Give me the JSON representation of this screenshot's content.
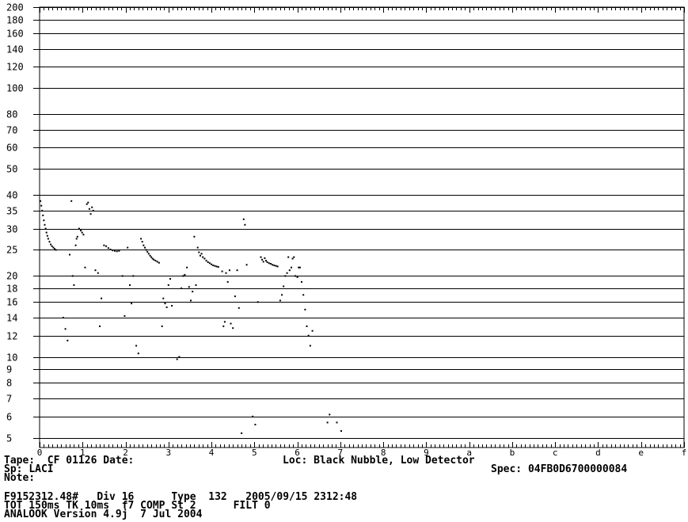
{
  "chart_data": {
    "type": "scatter",
    "title": "",
    "xlabel": "",
    "ylabel": "",
    "x_scale": "linear",
    "y_scale": "log",
    "xlim": [
      0,
      15
    ],
    "ylim": [
      4.6,
      200
    ],
    "grid": true,
    "x_ticks": [
      {
        "v": 0,
        "label": "0"
      },
      {
        "v": 1,
        "label": "1"
      },
      {
        "v": 2,
        "label": "2"
      },
      {
        "v": 3,
        "label": "3"
      },
      {
        "v": 4,
        "label": "4"
      },
      {
        "v": 5,
        "label": "5"
      },
      {
        "v": 6,
        "label": "6"
      },
      {
        "v": 7,
        "label": "7"
      },
      {
        "v": 8,
        "label": "8"
      },
      {
        "v": 9,
        "label": "9"
      },
      {
        "v": 10,
        "label": "a"
      },
      {
        "v": 11,
        "label": "b"
      },
      {
        "v": 12,
        "label": "c"
      },
      {
        "v": 13,
        "label": "d"
      },
      {
        "v": 14,
        "label": "e"
      },
      {
        "v": 15,
        "label": "f"
      }
    ],
    "y_ticks": [
      {
        "v": 200,
        "label": "200"
      },
      {
        "v": 180,
        "label": "180"
      },
      {
        "v": 160,
        "label": "160"
      },
      {
        "v": 140,
        "label": "140"
      },
      {
        "v": 120,
        "label": "120"
      },
      {
        "v": 100,
        "label": "100"
      },
      {
        "v": 80,
        "label": "80"
      },
      {
        "v": 70,
        "label": "70"
      },
      {
        "v": 60,
        "label": "60"
      },
      {
        "v": 50,
        "label": "50"
      },
      {
        "v": 40,
        "label": "40"
      },
      {
        "v": 35,
        "label": "35"
      },
      {
        "v": 30,
        "label": "30"
      },
      {
        "v": 25,
        "label": "25"
      },
      {
        "v": 20,
        "label": "20"
      },
      {
        "v": 18,
        "label": "18"
      },
      {
        "v": 16,
        "label": "16"
      },
      {
        "v": 14,
        "label": "14"
      },
      {
        "v": 12,
        "label": "12"
      },
      {
        "v": 10,
        "label": "10"
      },
      {
        "v": 9,
        "label": "9"
      },
      {
        "v": 8,
        "label": "8"
      },
      {
        "v": 7,
        "label": "7"
      },
      {
        "v": 6,
        "label": "6"
      },
      {
        "v": 5,
        "label": "5"
      }
    ],
    "series": [
      {
        "color": "#000000",
        "points": [
          [
            0.02,
            38.0
          ],
          [
            0.04,
            36.5
          ],
          [
            0.06,
            35.0
          ],
          [
            0.08,
            33.6
          ],
          [
            0.1,
            32.2
          ],
          [
            0.12,
            31.0
          ],
          [
            0.14,
            30.0
          ],
          [
            0.16,
            29.0
          ],
          [
            0.18,
            28.2
          ],
          [
            0.2,
            27.5
          ],
          [
            0.23,
            26.8
          ],
          [
            0.26,
            26.2
          ],
          [
            0.29,
            25.8
          ],
          [
            0.32,
            25.5
          ],
          [
            0.35,
            25.2
          ],
          [
            0.38,
            25.0
          ],
          [
            0.55,
            14.0
          ],
          [
            0.6,
            12.7
          ],
          [
            0.65,
            11.5
          ],
          [
            0.7,
            24.0
          ],
          [
            0.74,
            38.0
          ],
          [
            0.77,
            20.0
          ],
          [
            0.8,
            18.5
          ],
          [
            0.84,
            26.0
          ],
          [
            0.86,
            27.5
          ],
          [
            0.88,
            28.0
          ],
          [
            0.92,
            30.0
          ],
          [
            0.96,
            29.5
          ],
          [
            0.99,
            29.0
          ],
          [
            1.02,
            28.5
          ],
          [
            1.06,
            21.5
          ],
          [
            1.1,
            37.0
          ],
          [
            1.13,
            37.5
          ],
          [
            1.16,
            35.5
          ],
          [
            1.19,
            34.0
          ],
          [
            1.22,
            36.0
          ],
          [
            1.25,
            35.0
          ],
          [
            1.3,
            21.0
          ],
          [
            1.36,
            20.5
          ],
          [
            1.4,
            13.0
          ],
          [
            1.44,
            16.5
          ],
          [
            1.5,
            26.0
          ],
          [
            1.55,
            25.8
          ],
          [
            1.6,
            25.4
          ],
          [
            1.65,
            25.1
          ],
          [
            1.7,
            24.9
          ],
          [
            1.75,
            24.8
          ],
          [
            1.8,
            24.7
          ],
          [
            1.85,
            24.8
          ],
          [
            1.93,
            20.0
          ],
          [
            1.98,
            14.2
          ],
          [
            2.05,
            25.5
          ],
          [
            2.1,
            18.5
          ],
          [
            2.14,
            15.8
          ],
          [
            2.18,
            20.0
          ],
          [
            2.25,
            11.0
          ],
          [
            2.3,
            10.3
          ],
          [
            2.36,
            27.5
          ],
          [
            2.39,
            26.8
          ],
          [
            2.42,
            26.0
          ],
          [
            2.45,
            25.5
          ],
          [
            2.48,
            25.0
          ],
          [
            2.51,
            24.6
          ],
          [
            2.54,
            24.2
          ],
          [
            2.57,
            23.8
          ],
          [
            2.6,
            23.5
          ],
          [
            2.63,
            23.2
          ],
          [
            2.66,
            23.0
          ],
          [
            2.7,
            22.8
          ],
          [
            2.74,
            22.6
          ],
          [
            2.78,
            22.4
          ],
          [
            2.85,
            13.0
          ],
          [
            2.88,
            16.5
          ],
          [
            2.92,
            15.8
          ],
          [
            2.96,
            15.3
          ],
          [
            3.0,
            18.5
          ],
          [
            3.04,
            19.5
          ],
          [
            3.08,
            15.5
          ],
          [
            3.2,
            9.8
          ],
          [
            3.25,
            10.0
          ],
          [
            3.3,
            18.0
          ],
          [
            3.34,
            20.0
          ],
          [
            3.38,
            20.2
          ],
          [
            3.43,
            21.5
          ],
          [
            3.48,
            18.2
          ],
          [
            3.52,
            16.2
          ],
          [
            3.56,
            17.5
          ],
          [
            3.6,
            28.0
          ],
          [
            3.64,
            18.5
          ],
          [
            3.68,
            25.5
          ],
          [
            3.71,
            24.5
          ],
          [
            3.74,
            23.8
          ],
          [
            3.77,
            24.2
          ],
          [
            3.8,
            23.5
          ],
          [
            3.84,
            23.2
          ],
          [
            3.88,
            22.8
          ],
          [
            3.92,
            22.5
          ],
          [
            3.96,
            22.3
          ],
          [
            4.0,
            22.1
          ],
          [
            4.04,
            21.9
          ],
          [
            4.08,
            21.8
          ],
          [
            4.12,
            21.7
          ],
          [
            4.16,
            21.6
          ],
          [
            4.25,
            20.8
          ],
          [
            4.28,
            13.0
          ],
          [
            4.31,
            13.5
          ],
          [
            4.34,
            20.5
          ],
          [
            4.38,
            19.0
          ],
          [
            4.42,
            21.0
          ],
          [
            4.45,
            13.3
          ],
          [
            4.5,
            12.8
          ],
          [
            4.55,
            16.8
          ],
          [
            4.6,
            21.0
          ],
          [
            4.64,
            15.2
          ],
          [
            4.7,
            5.2
          ],
          [
            4.75,
            32.5
          ],
          [
            4.78,
            31.0
          ],
          [
            4.82,
            22.0
          ],
          [
            4.96,
            6.0
          ],
          [
            5.02,
            5.6
          ],
          [
            5.08,
            16.0
          ],
          [
            5.15,
            23.5
          ],
          [
            5.18,
            23.0
          ],
          [
            5.21,
            22.6
          ],
          [
            5.24,
            23.3
          ],
          [
            5.27,
            22.8
          ],
          [
            5.3,
            22.5
          ],
          [
            5.34,
            22.3
          ],
          [
            5.38,
            22.2
          ],
          [
            5.42,
            22.0
          ],
          [
            5.46,
            21.9
          ],
          [
            5.5,
            21.8
          ],
          [
            5.54,
            21.7
          ],
          [
            5.6,
            16.2
          ],
          [
            5.64,
            17.0
          ],
          [
            5.68,
            18.3
          ],
          [
            5.72,
            20.0
          ],
          [
            5.76,
            20.5
          ],
          [
            5.79,
            23.5
          ],
          [
            5.82,
            21.0
          ],
          [
            5.86,
            21.5
          ],
          [
            5.89,
            23.2
          ],
          [
            5.92,
            23.5
          ],
          [
            5.95,
            20.0
          ],
          [
            6.0,
            19.8
          ],
          [
            6.03,
            21.5
          ],
          [
            6.06,
            21.5
          ],
          [
            6.1,
            19.0
          ],
          [
            6.14,
            17.0
          ],
          [
            6.18,
            15.0
          ],
          [
            6.22,
            13.0
          ],
          [
            6.26,
            12.0
          ],
          [
            6.3,
            11.0
          ],
          [
            6.35,
            12.5
          ],
          [
            6.7,
            5.7
          ],
          [
            6.75,
            6.1
          ],
          [
            6.92,
            5.7
          ],
          [
            7.02,
            5.3
          ]
        ]
      }
    ]
  },
  "header_info": {
    "tape_label": "Tape:",
    "tape_value": "CF 01126",
    "date_label": "Date:",
    "date_value": "",
    "loc_label": "Loc:",
    "loc_value": "Black Nubble, Low Detector",
    "sp_label": "Sp:",
    "sp_value": "LACI",
    "spec_label": "Spec:",
    "spec_value": "04FB0D6700000084",
    "note_label": "Note:",
    "note_value": ""
  },
  "file_info": {
    "line1": "F9152312.48#   Div 16      Type  132   2005/09/15 2312:48",
    "line2": "TOT 150ms TK 10ms  f7 COMP St 2      FILT 0",
    "line3": "ANALOOK Version 4.9j  7 Jul 2004"
  }
}
